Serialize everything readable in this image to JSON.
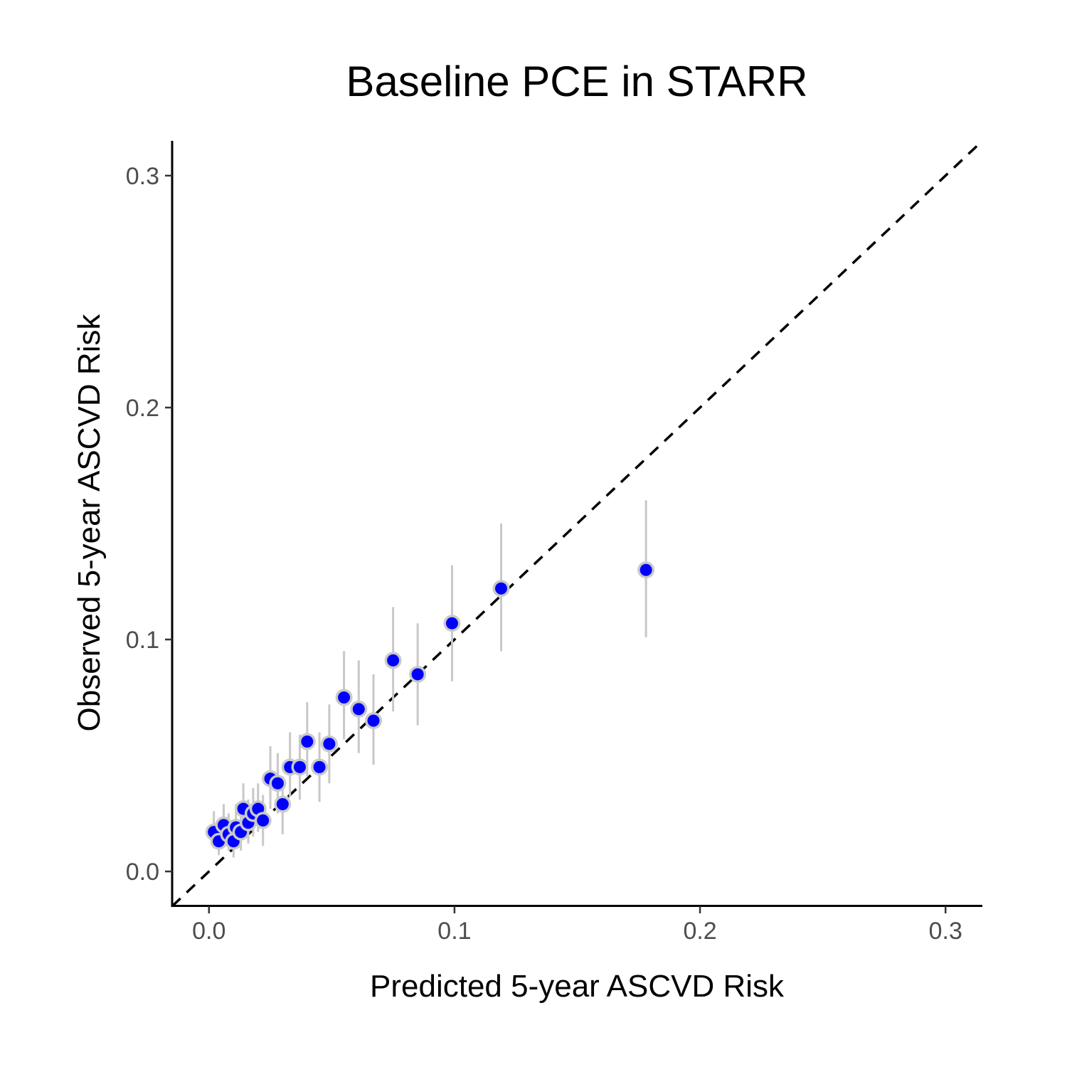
{
  "chart_data": {
    "type": "scatter",
    "title": "Baseline PCE in STARR",
    "xlabel": "Predicted 5-year ASCVD Risk",
    "ylabel": "Observed 5-year ASCVD Risk",
    "xlim": [
      -0.015,
      0.315
    ],
    "ylim": [
      -0.015,
      0.315
    ],
    "xticks": [
      0.0,
      0.1,
      0.2,
      0.3
    ],
    "xtick_labels": [
      "0.0",
      "0.1",
      "0.2",
      "0.3"
    ],
    "yticks": [
      0.0,
      0.1,
      0.2,
      0.3
    ],
    "ytick_labels": [
      "0.0",
      "0.1",
      "0.2",
      "0.3"
    ],
    "reference_line": {
      "style": "dashed",
      "slope": 1,
      "intercept": 0
    },
    "colors": {
      "point": "#0000ff",
      "point_outline": "#c9c9c9",
      "error_bar": "#c8c8c8",
      "reference": "#000000"
    },
    "points": [
      {
        "x": 0.002,
        "y": 0.017,
        "lo": 0.01,
        "hi": 0.026
      },
      {
        "x": 0.004,
        "y": 0.013,
        "lo": 0.007,
        "hi": 0.021
      },
      {
        "x": 0.006,
        "y": 0.02,
        "lo": 0.012,
        "hi": 0.029
      },
      {
        "x": 0.008,
        "y": 0.016,
        "lo": 0.009,
        "hi": 0.025
      },
      {
        "x": 0.01,
        "y": 0.013,
        "lo": 0.006,
        "hi": 0.021
      },
      {
        "x": 0.011,
        "y": 0.019,
        "lo": 0.011,
        "hi": 0.029
      },
      {
        "x": 0.013,
        "y": 0.017,
        "lo": 0.009,
        "hi": 0.027
      },
      {
        "x": 0.014,
        "y": 0.027,
        "lo": 0.016,
        "hi": 0.038
      },
      {
        "x": 0.016,
        "y": 0.021,
        "lo": 0.012,
        "hi": 0.031
      },
      {
        "x": 0.018,
        "y": 0.025,
        "lo": 0.015,
        "hi": 0.036
      },
      {
        "x": 0.02,
        "y": 0.027,
        "lo": 0.017,
        "hi": 0.038
      },
      {
        "x": 0.022,
        "y": 0.022,
        "lo": 0.011,
        "hi": 0.033
      },
      {
        "x": 0.025,
        "y": 0.04,
        "lo": 0.027,
        "hi": 0.054
      },
      {
        "x": 0.028,
        "y": 0.038,
        "lo": 0.025,
        "hi": 0.051
      },
      {
        "x": 0.03,
        "y": 0.029,
        "lo": 0.016,
        "hi": 0.041
      },
      {
        "x": 0.033,
        "y": 0.045,
        "lo": 0.032,
        "hi": 0.06
      },
      {
        "x": 0.037,
        "y": 0.045,
        "lo": 0.031,
        "hi": 0.059
      },
      {
        "x": 0.04,
        "y": 0.056,
        "lo": 0.041,
        "hi": 0.073
      },
      {
        "x": 0.045,
        "y": 0.045,
        "lo": 0.03,
        "hi": 0.06
      },
      {
        "x": 0.049,
        "y": 0.055,
        "lo": 0.038,
        "hi": 0.072
      },
      {
        "x": 0.055,
        "y": 0.075,
        "lo": 0.057,
        "hi": 0.095
      },
      {
        "x": 0.061,
        "y": 0.07,
        "lo": 0.051,
        "hi": 0.091
      },
      {
        "x": 0.067,
        "y": 0.065,
        "lo": 0.046,
        "hi": 0.085
      },
      {
        "x": 0.075,
        "y": 0.091,
        "lo": 0.069,
        "hi": 0.114
      },
      {
        "x": 0.085,
        "y": 0.085,
        "lo": 0.063,
        "hi": 0.107
      },
      {
        "x": 0.099,
        "y": 0.107,
        "lo": 0.082,
        "hi": 0.132
      },
      {
        "x": 0.119,
        "y": 0.122,
        "lo": 0.095,
        "hi": 0.15
      },
      {
        "x": 0.178,
        "y": 0.13,
        "lo": 0.101,
        "hi": 0.16
      }
    ]
  }
}
